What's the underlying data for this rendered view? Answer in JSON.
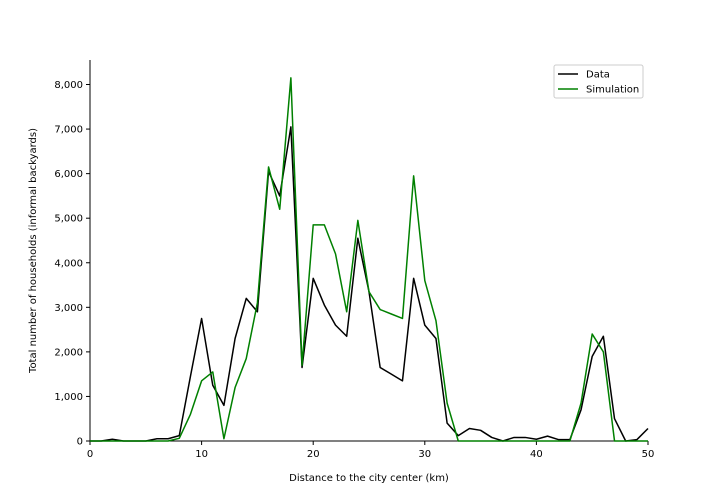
{
  "chart_data": {
    "type": "line",
    "xlabel": "Distance to the city center (km)",
    "ylabel": "Total number of households (informal backyards)",
    "xlim": [
      0,
      50
    ],
    "ylim": [
      0,
      8550
    ],
    "xticks": [
      0,
      10,
      20,
      30,
      40,
      50
    ],
    "yticks": [
      0,
      1000,
      2000,
      3000,
      4000,
      5000,
      6000,
      7000,
      8000
    ],
    "ytick_labels": [
      "0",
      "1,000",
      "2,000",
      "3,000",
      "4,000",
      "5,000",
      "6,000",
      "7,000",
      "8,000"
    ],
    "grid": false,
    "legend_position": "top-right",
    "series": [
      {
        "name": "Data",
        "color": "#000000",
        "x": [
          0,
          1,
          2,
          3,
          4,
          5,
          6,
          7,
          8,
          9,
          10,
          11,
          12,
          13,
          14,
          15,
          16,
          17,
          18,
          19,
          20,
          21,
          22,
          23,
          24,
          25,
          26,
          27,
          28,
          29,
          30,
          31,
          32,
          33,
          34,
          35,
          36,
          37,
          38,
          39,
          40,
          41,
          42,
          43,
          44,
          45,
          46,
          47,
          48,
          49,
          50
        ],
        "y": [
          0,
          0,
          40,
          0,
          0,
          0,
          50,
          50,
          120,
          1450,
          2750,
          1250,
          800,
          2300,
          3200,
          2900,
          6050,
          5500,
          7050,
          1650,
          3650,
          3050,
          2600,
          2350,
          4550,
          3350,
          1650,
          1500,
          1350,
          3650,
          2600,
          2300,
          400,
          120,
          280,
          240,
          80,
          0,
          80,
          80,
          40,
          110,
          30,
          30,
          700,
          1900,
          2350,
          500,
          0,
          30,
          280
        ]
      },
      {
        "name": "Simulation",
        "color": "#008000",
        "x": [
          0,
          1,
          2,
          3,
          4,
          5,
          6,
          7,
          8,
          9,
          10,
          11,
          12,
          13,
          14,
          15,
          16,
          17,
          18,
          19,
          20,
          21,
          22,
          23,
          24,
          25,
          26,
          27,
          28,
          29,
          30,
          31,
          32,
          33,
          34,
          35,
          36,
          37,
          38,
          39,
          40,
          41,
          42,
          43,
          44,
          45,
          46,
          47,
          48,
          49,
          50
        ],
        "y": [
          0,
          0,
          0,
          0,
          0,
          0,
          0,
          0,
          60,
          600,
          1350,
          1550,
          50,
          1200,
          1850,
          3100,
          6150,
          5200,
          8150,
          1700,
          4850,
          4850,
          4200,
          2900,
          4950,
          3350,
          2950,
          2850,
          2750,
          5950,
          3600,
          2700,
          850,
          0,
          0,
          0,
          0,
          0,
          0,
          0,
          0,
          0,
          0,
          0,
          850,
          2400,
          2000,
          0,
          0,
          0,
          0
        ]
      }
    ]
  }
}
